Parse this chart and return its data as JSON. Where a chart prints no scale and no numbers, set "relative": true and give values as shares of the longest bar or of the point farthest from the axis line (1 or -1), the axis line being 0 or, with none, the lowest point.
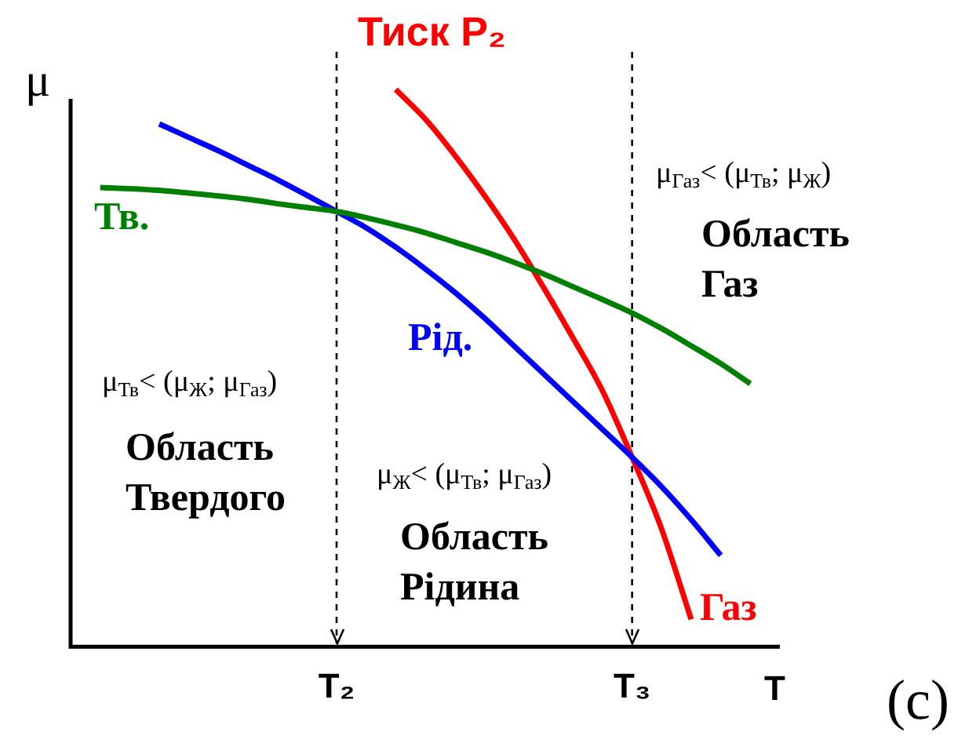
{
  "chart_data": {
    "type": "line",
    "title": "Тиск P₂",
    "xlabel": "T",
    "ylabel": "μ",
    "relative": true,
    "tick_labels": "x",
    "categories": [
      null,
      null,
      null,
      null,
      null,
      null,
      null,
      null,
      null,
      "T₂",
      null,
      null,
      null,
      null,
      null,
      null,
      null,
      null,
      null,
      "T₃",
      null,
      null,
      null,
      null,
      null
    ],
    "series": [
      {
        "name": "Тв.",
        "color": "#008000",
        "values": [
          null,
          0.824,
          0.822,
          0.819,
          0.814,
          0.809,
          0.803,
          0.795,
          0.788,
          0.781,
          0.77,
          0.757,
          0.743,
          0.726,
          0.709,
          0.69,
          0.669,
          0.646,
          0.623,
          0.599,
          0.571,
          0.54,
          0.508,
          0.472,
          null
        ]
      },
      {
        "name": "Рід.",
        "color": "#0000ff",
        "values": [
          null,
          null,
          null,
          0.938,
          0.914,
          0.89,
          0.864,
          0.838,
          0.81,
          0.781,
          0.752,
          0.717,
          0.678,
          0.636,
          0.59,
          0.54,
          0.49,
          0.44,
          0.39,
          0.34,
          0.287,
          0.228,
          0.164,
          null,
          null
        ]
      },
      {
        "name": "Газ",
        "color": "#ff0000",
        "values": [
          null,
          null,
          null,
          null,
          null,
          null,
          null,
          null,
          null,
          null,
          null,
          1.0,
          0.947,
          0.882,
          0.81,
          0.732,
          0.645,
          0.554,
          0.459,
          0.34,
          0.211,
          0.049,
          null,
          null,
          null
        ]
      }
    ],
    "ref_lines": [
      {
        "axis": "x",
        "value": "T₂",
        "line_style": "dashed"
      },
      {
        "axis": "x",
        "value": "T₃",
        "line_style": "dashed"
      }
    ],
    "annotations": [
      "μ$_{Газ}$< (μ$_{Тв}$; μ$_{Ж}$)",
      "Область Газ",
      "μ$_{Тв}$< (μ$_{Ж}$; μ$_{Газ}$)",
      "Область Твердого",
      "μ$_{Ж}$< (μ$_{Тв}$; μ$_{Газ}$)",
      "Область Рідина",
      "(c)"
    ]
  }
}
